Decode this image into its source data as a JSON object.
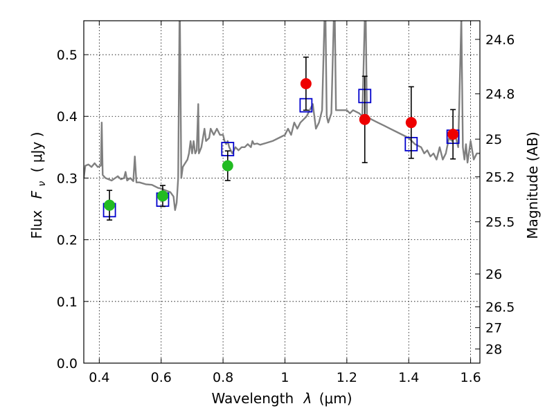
{
  "chart_data": {
    "type": "scatter",
    "xlabel_text": "Wavelength",
    "xlabel_symbol": "λ",
    "xlabel_unit": "(μm)",
    "ylabel_text": "Flux",
    "ylabel_symbol": "F",
    "ylabel_sub": "ν",
    "ylabel_unit": "( μJy )",
    "y2label": "Magnitude (AB)",
    "xlim": [
      0.35,
      1.63
    ],
    "ylim": [
      0.0,
      0.555
    ],
    "x_ticks": [
      {
        "value": 0.4,
        "label": "0.4"
      },
      {
        "value": 0.6,
        "label": "0.6"
      },
      {
        "value": 0.8,
        "label": "0.8"
      },
      {
        "value": 1.0,
        "label": "1"
      },
      {
        "value": 1.2,
        "label": "1.2"
      },
      {
        "value": 1.4,
        "label": "1.4"
      },
      {
        "value": 1.6,
        "label": "1.6"
      }
    ],
    "y_ticks": [
      {
        "value": 0.0,
        "label": "0.0"
      },
      {
        "value": 0.1,
        "label": "0.1"
      },
      {
        "value": 0.2,
        "label": "0.2"
      },
      {
        "value": 0.3,
        "label": "0.3"
      },
      {
        "value": 0.4,
        "label": "0.4"
      },
      {
        "value": 0.5,
        "label": "0.5"
      }
    ],
    "y2_ticks": [
      {
        "value": 24.6,
        "label": "24.6"
      },
      {
        "value": 24.8,
        "label": "24.8"
      },
      {
        "value": 25.0,
        "label": "25"
      },
      {
        "value": 25.2,
        "label": "25.2"
      },
      {
        "value": 25.5,
        "label": "25.5"
      },
      {
        "value": 26.0,
        "label": "26"
      },
      {
        "value": 26.5,
        "label": "26.5"
      },
      {
        "value": 27.0,
        "label": "27"
      },
      {
        "value": 28.0,
        "label": "28"
      }
    ],
    "grid": true,
    "colors": {
      "spectrum": "#808080",
      "ground_points": "#22bb22",
      "space_points": "#ee0000",
      "model_squares": "#0000cc",
      "errorbars": "#000000"
    },
    "spectrum": [
      [
        0.35,
        0.3
      ],
      [
        0.355,
        0.32
      ],
      [
        0.365,
        0.322
      ],
      [
        0.375,
        0.318
      ],
      [
        0.385,
        0.324
      ],
      [
        0.395,
        0.318
      ],
      [
        0.405,
        0.32
      ],
      [
        0.408,
        0.39
      ],
      [
        0.411,
        0.305
      ],
      [
        0.42,
        0.3
      ],
      [
        0.44,
        0.296
      ],
      [
        0.46,
        0.303
      ],
      [
        0.47,
        0.298
      ],
      [
        0.48,
        0.3
      ],
      [
        0.485,
        0.31
      ],
      [
        0.49,
        0.296
      ],
      [
        0.5,
        0.3
      ],
      [
        0.51,
        0.295
      ],
      [
        0.515,
        0.335
      ],
      [
        0.52,
        0.293
      ],
      [
        0.53,
        0.293
      ],
      [
        0.55,
        0.29
      ],
      [
        0.57,
        0.289
      ],
      [
        0.59,
        0.284
      ],
      [
        0.6,
        0.283
      ],
      [
        0.62,
        0.279
      ],
      [
        0.63,
        0.277
      ],
      [
        0.64,
        0.27
      ],
      [
        0.645,
        0.248
      ],
      [
        0.65,
        0.26
      ],
      [
        0.655,
        0.3
      ],
      [
        0.66,
        0.6
      ],
      [
        0.665,
        0.3
      ],
      [
        0.67,
        0.318
      ],
      [
        0.675,
        0.322
      ],
      [
        0.685,
        0.33
      ],
      [
        0.69,
        0.34
      ],
      [
        0.695,
        0.36
      ],
      [
        0.7,
        0.34
      ],
      [
        0.705,
        0.36
      ],
      [
        0.71,
        0.34
      ],
      [
        0.715,
        0.345
      ],
      [
        0.72,
        0.42
      ],
      [
        0.722,
        0.34
      ],
      [
        0.73,
        0.35
      ],
      [
        0.74,
        0.38
      ],
      [
        0.745,
        0.36
      ],
      [
        0.755,
        0.365
      ],
      [
        0.76,
        0.38
      ],
      [
        0.77,
        0.37
      ],
      [
        0.78,
        0.38
      ],
      [
        0.79,
        0.37
      ],
      [
        0.8,
        0.37
      ],
      [
        0.805,
        0.36
      ],
      [
        0.81,
        0.355
      ],
      [
        0.815,
        0.36
      ],
      [
        0.82,
        0.35
      ],
      [
        0.83,
        0.34
      ],
      [
        0.84,
        0.35
      ],
      [
        0.85,
        0.345
      ],
      [
        0.86,
        0.35
      ],
      [
        0.87,
        0.35
      ],
      [
        0.88,
        0.355
      ],
      [
        0.89,
        0.35
      ],
      [
        0.895,
        0.36
      ],
      [
        0.9,
        0.355
      ],
      [
        0.91,
        0.356
      ],
      [
        0.92,
        0.354
      ],
      [
        0.94,
        0.357
      ],
      [
        0.96,
        0.36
      ],
      [
        0.98,
        0.365
      ],
      [
        1.0,
        0.37
      ],
      [
        1.01,
        0.38
      ],
      [
        1.02,
        0.37
      ],
      [
        1.03,
        0.39
      ],
      [
        1.04,
        0.38
      ],
      [
        1.05,
        0.39
      ],
      [
        1.06,
        0.395
      ],
      [
        1.07,
        0.4
      ],
      [
        1.08,
        0.41
      ],
      [
        1.09,
        0.42
      ],
      [
        1.1,
        0.38
      ],
      [
        1.11,
        0.39
      ],
      [
        1.12,
        0.41
      ],
      [
        1.13,
        0.6
      ],
      [
        1.135,
        0.4
      ],
      [
        1.14,
        0.39
      ],
      [
        1.15,
        0.405
      ],
      [
        1.16,
        0.6
      ],
      [
        1.165,
        0.41
      ],
      [
        1.18,
        0.41
      ],
      [
        1.2,
        0.41
      ],
      [
        1.21,
        0.405
      ],
      [
        1.22,
        0.41
      ],
      [
        1.24,
        0.405
      ],
      [
        1.25,
        0.4
      ],
      [
        1.26,
        0.6
      ],
      [
        1.265,
        0.4
      ],
      [
        1.28,
        0.395
      ],
      [
        1.3,
        0.39
      ],
      [
        1.32,
        0.385
      ],
      [
        1.34,
        0.38
      ],
      [
        1.36,
        0.375
      ],
      [
        1.38,
        0.37
      ],
      [
        1.4,
        0.365
      ],
      [
        1.42,
        0.355
      ],
      [
        1.44,
        0.35
      ],
      [
        1.45,
        0.34
      ],
      [
        1.46,
        0.345
      ],
      [
        1.47,
        0.335
      ],
      [
        1.48,
        0.34
      ],
      [
        1.49,
        0.33
      ],
      [
        1.5,
        0.35
      ],
      [
        1.51,
        0.33
      ],
      [
        1.52,
        0.34
      ],
      [
        1.53,
        0.365
      ],
      [
        1.54,
        0.36
      ],
      [
        1.55,
        0.37
      ],
      [
        1.56,
        0.35
      ],
      [
        1.57,
        0.56
      ],
      [
        1.575,
        0.35
      ],
      [
        1.58,
        0.33
      ],
      [
        1.585,
        0.355
      ],
      [
        1.59,
        0.325
      ],
      [
        1.6,
        0.36
      ],
      [
        1.61,
        0.33
      ],
      [
        1.62,
        0.34
      ],
      [
        1.63,
        0.34
      ]
    ],
    "ground_points": [
      {
        "x": 0.433,
        "y": 0.256,
        "err": 0.024
      },
      {
        "x": 0.605,
        "y": 0.271,
        "err": 0.017
      },
      {
        "x": 0.815,
        "y": 0.32,
        "err": 0.024
      }
    ],
    "space_points": [
      {
        "x": 1.068,
        "y": 0.453,
        "err": 0.043
      },
      {
        "x": 1.258,
        "y": 0.395,
        "err": 0.07
      },
      {
        "x": 1.408,
        "y": 0.39,
        "err": 0.058
      },
      {
        "x": 1.543,
        "y": 0.371,
        "err": 0.04
      }
    ],
    "model_squares": [
      {
        "x": 0.433,
        "y": 0.248
      },
      {
        "x": 0.605,
        "y": 0.265
      },
      {
        "x": 0.815,
        "y": 0.347
      },
      {
        "x": 1.068,
        "y": 0.418
      },
      {
        "x": 1.258,
        "y": 0.433
      },
      {
        "x": 1.408,
        "y": 0.355
      },
      {
        "x": 1.543,
        "y": 0.367
      }
    ]
  }
}
